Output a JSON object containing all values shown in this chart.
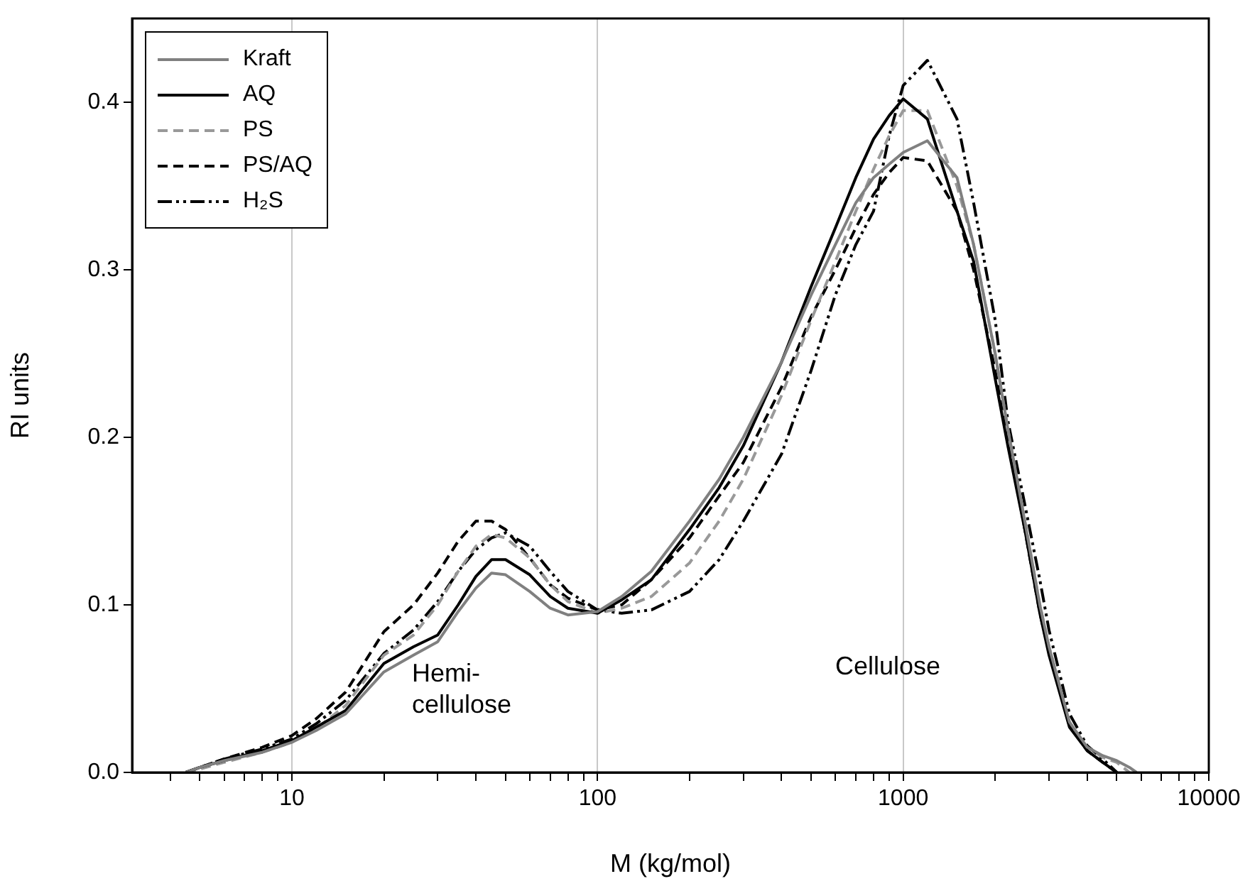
{
  "chart_data": {
    "type": "line",
    "xlabel": "M (kg/mol)",
    "ylabel": "RI units",
    "log": "x",
    "grid": "x",
    "legend": "top left",
    "marker": "none",
    "x": [
      4.5,
      5,
      6,
      8,
      10,
      12,
      15,
      20,
      25,
      30,
      35,
      40,
      45,
      50,
      60,
      70,
      80,
      100,
      120,
      150,
      200,
      250,
      300,
      400,
      500,
      600,
      700,
      800,
      900,
      1000,
      1200,
      1500,
      1700,
      2000,
      2200,
      2500,
      2800,
      3000,
      3500,
      4000,
      4500,
      5000,
      5500,
      5800
    ],
    "series": [
      {
        "name": "Kraft",
        "color": "#808080",
        "line_style": "solid",
        "values": [
          0,
          0.003,
          0.007,
          0.012,
          0.018,
          0.025,
          0.035,
          0.06,
          0.07,
          0.078,
          0.096,
          0.11,
          0.119,
          0.118,
          0.108,
          0.098,
          0.094,
          0.096,
          0.105,
          0.12,
          0.15,
          0.175,
          0.2,
          0.245,
          0.285,
          0.315,
          0.34,
          0.355,
          0.363,
          0.37,
          0.377,
          0.355,
          0.315,
          0.25,
          0.205,
          0.15,
          0.1,
          0.075,
          0.03,
          0.015,
          0.01,
          0.007,
          0.003,
          0
        ]
      },
      {
        "name": "AQ",
        "color": "#000000",
        "line_style": "solid",
        "values": [
          0,
          0.003,
          0.007,
          0.013,
          0.019,
          0.027,
          0.037,
          0.065,
          0.075,
          0.082,
          0.1,
          0.117,
          0.127,
          0.127,
          0.118,
          0.105,
          0.098,
          0.095,
          0.103,
          0.115,
          0.145,
          0.17,
          0.195,
          0.245,
          0.29,
          0.325,
          0.355,
          0.378,
          0.392,
          0.402,
          0.39,
          0.335,
          0.305,
          0.235,
          0.195,
          0.145,
          0.095,
          0.07,
          0.027,
          0.013,
          0.006,
          0,
          null,
          null
        ]
      },
      {
        "name": "PS",
        "color": "#999999",
        "line_style": "dashed",
        "values": [
          0,
          0.002,
          0.006,
          0.012,
          0.018,
          0.026,
          0.04,
          0.07,
          0.082,
          0.1,
          0.12,
          0.135,
          0.142,
          0.14,
          0.128,
          0.112,
          0.102,
          0.095,
          0.098,
          0.105,
          0.125,
          0.15,
          0.175,
          0.225,
          0.27,
          0.305,
          0.335,
          0.36,
          0.38,
          0.395,
          0.395,
          0.35,
          0.315,
          0.25,
          0.205,
          0.15,
          0.1,
          0.075,
          0.03,
          0.015,
          0.009,
          0.006,
          0,
          null
        ]
      },
      {
        "name": "PS/AQ",
        "color": "#000000",
        "line_style": "dashed",
        "values": [
          0,
          0.003,
          0.008,
          0.015,
          0.022,
          0.032,
          0.048,
          0.084,
          0.1,
          0.119,
          0.138,
          0.15,
          0.15,
          0.145,
          0.128,
          0.112,
          0.104,
          0.097,
          0.1,
          0.115,
          0.14,
          0.165,
          0.185,
          0.23,
          0.272,
          0.3,
          0.325,
          0.345,
          0.358,
          0.367,
          0.365,
          0.335,
          0.3,
          0.24,
          0.2,
          0.145,
          0.095,
          0.072,
          0.028,
          0.013,
          0.006,
          0,
          null,
          null
        ]
      },
      {
        "name": "H₂S",
        "color": "#000000",
        "line_style": "dashdotdot",
        "values": [
          0,
          0.003,
          0.008,
          0.014,
          0.02,
          0.029,
          0.043,
          0.071,
          0.085,
          0.102,
          0.12,
          0.133,
          0.14,
          0.143,
          0.135,
          0.12,
          0.108,
          0.097,
          0.095,
          0.097,
          0.108,
          0.127,
          0.15,
          0.19,
          0.24,
          0.285,
          0.315,
          0.335,
          0.38,
          0.41,
          0.425,
          0.39,
          0.34,
          0.27,
          0.21,
          0.16,
          0.115,
          0.085,
          0.035,
          0.016,
          0.008,
          0,
          null,
          null
        ]
      }
    ],
    "xlim": [
      3,
      10000
    ],
    "xticks": [
      {
        "value": 4,
        "label": null
      },
      {
        "value": 5,
        "label": null
      },
      {
        "value": 6,
        "label": null
      },
      {
        "value": 7,
        "label": null
      },
      {
        "value": 8,
        "label": null
      },
      {
        "value": 9,
        "label": null
      },
      10,
      {
        "value": 20,
        "label": null
      },
      {
        "value": 30,
        "label": null
      },
      {
        "value": 40,
        "label": null
      },
      {
        "value": 50,
        "label": null
      },
      {
        "value": 60,
        "label": null
      },
      {
        "value": 70,
        "label": null
      },
      {
        "value": 80,
        "label": null
      },
      {
        "value": 90,
        "label": null
      },
      100,
      {
        "value": 200,
        "label": null
      },
      {
        "value": 300,
        "label": null
      },
      {
        "value": 400,
        "label": null
      },
      {
        "value": 500,
        "label": null
      },
      {
        "value": 600,
        "label": null
      },
      {
        "value": 700,
        "label": null
      },
      {
        "value": 800,
        "label": null
      },
      {
        "value": 900,
        "label": null
      },
      1000,
      {
        "value": 2000,
        "label": null
      },
      {
        "value": 3000,
        "label": null
      },
      {
        "value": 4000,
        "label": null
      },
      {
        "value": 5000,
        "label": null
      },
      {
        "value": 6000,
        "label": null
      },
      {
        "value": 7000,
        "label": null
      },
      {
        "value": 8000,
        "label": null
      },
      {
        "value": 9000,
        "label": null
      },
      10000
    ],
    "ylim": [
      0,
      0.45
    ],
    "yticks": [
      {
        "value": 0,
        "label": "0.0"
      },
      0.1,
      0.2,
      0.3,
      0.4
    ],
    "annotations": [
      "Hemi-\ncellulose",
      "Cellulose"
    ]
  }
}
